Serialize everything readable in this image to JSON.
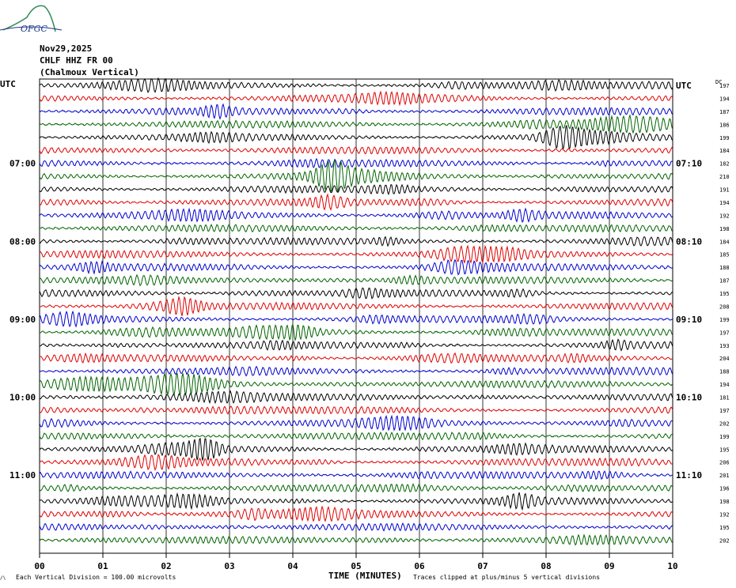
{
  "header": {
    "date": "Nov29,2025",
    "station": "CHLF HHZ FR 00",
    "location": "(Chalmoux Vertical)",
    "logo_text": "OFGC"
  },
  "left_axis_label": "UTC",
  "right_axis_label": "UTC",
  "dc_label": "DC",
  "footer": {
    "vertical_division": "Each Vertical Division =  100.00 microvolts",
    "xlabel": "TIME (MINUTES)",
    "clip_note": "Traces clipped at plus/minus 5 vertical divisions"
  },
  "colors": {
    "trace_cycle": [
      "#000000",
      "#e00000",
      "#0000d0",
      "#006400"
    ],
    "grid": "#000000"
  },
  "chart_data": {
    "type": "line",
    "title": "",
    "xlabel": "TIME (MINUTES)",
    "ylabel": "",
    "xlim": [
      0,
      10
    ],
    "x_ticks": [
      "00",
      "01",
      "02",
      "03",
      "04",
      "05",
      "06",
      "07",
      "08",
      "09",
      "10"
    ],
    "trace_count": 36,
    "left_time_labels": [
      {
        "row": 6,
        "label": "07:00"
      },
      {
        "row": 12,
        "label": "08:00"
      },
      {
        "row": 18,
        "label": "09:00"
      },
      {
        "row": 24,
        "label": "10:00"
      },
      {
        "row": 30,
        "label": "11:00"
      }
    ],
    "right_time_labels": [
      {
        "row": 0,
        "label": "UTC"
      },
      {
        "row": 6,
        "label": "07:10"
      },
      {
        "row": 12,
        "label": "08:10"
      },
      {
        "row": 18,
        "label": "09:10"
      },
      {
        "row": 24,
        "label": "10:10"
      },
      {
        "row": 30,
        "label": "11:10"
      }
    ],
    "dc_offsets": [
      197,
      194,
      187,
      186,
      199,
      184,
      182,
      210,
      191,
      194,
      192,
      198,
      184,
      185,
      188,
      187,
      195,
      208,
      199,
      197,
      193,
      204,
      188,
      194,
      181,
      197,
      202,
      199,
      195,
      206,
      201,
      196,
      198,
      192,
      195,
      202
    ]
  }
}
